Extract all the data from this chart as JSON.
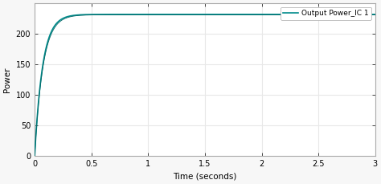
{
  "xlabel": "Time (seconds)",
  "ylabel": "Power",
  "xlim": [
    0,
    3
  ],
  "ylim": [
    0,
    250
  ],
  "yticks": [
    0,
    50,
    100,
    150,
    200
  ],
  "xtick_values": [
    0,
    0.5,
    1,
    1.5,
    2,
    2.5,
    3
  ],
  "xtick_labels": [
    "0",
    "0.5",
    "1",
    "1.5",
    "2",
    "2.5",
    "3"
  ],
  "line_color": "#008B8B",
  "line_color2": "#006666",
  "legend_label": "Output Power_IC 1",
  "max_power": 232,
  "time_constant": 0.07,
  "bg_color": "#f7f7f7",
  "plot_bg_color": "#ffffff",
  "grid_color": "#e8e8e8",
  "font_size": 7.5,
  "tick_label_size": 7,
  "legend_fontsize": 6.5
}
